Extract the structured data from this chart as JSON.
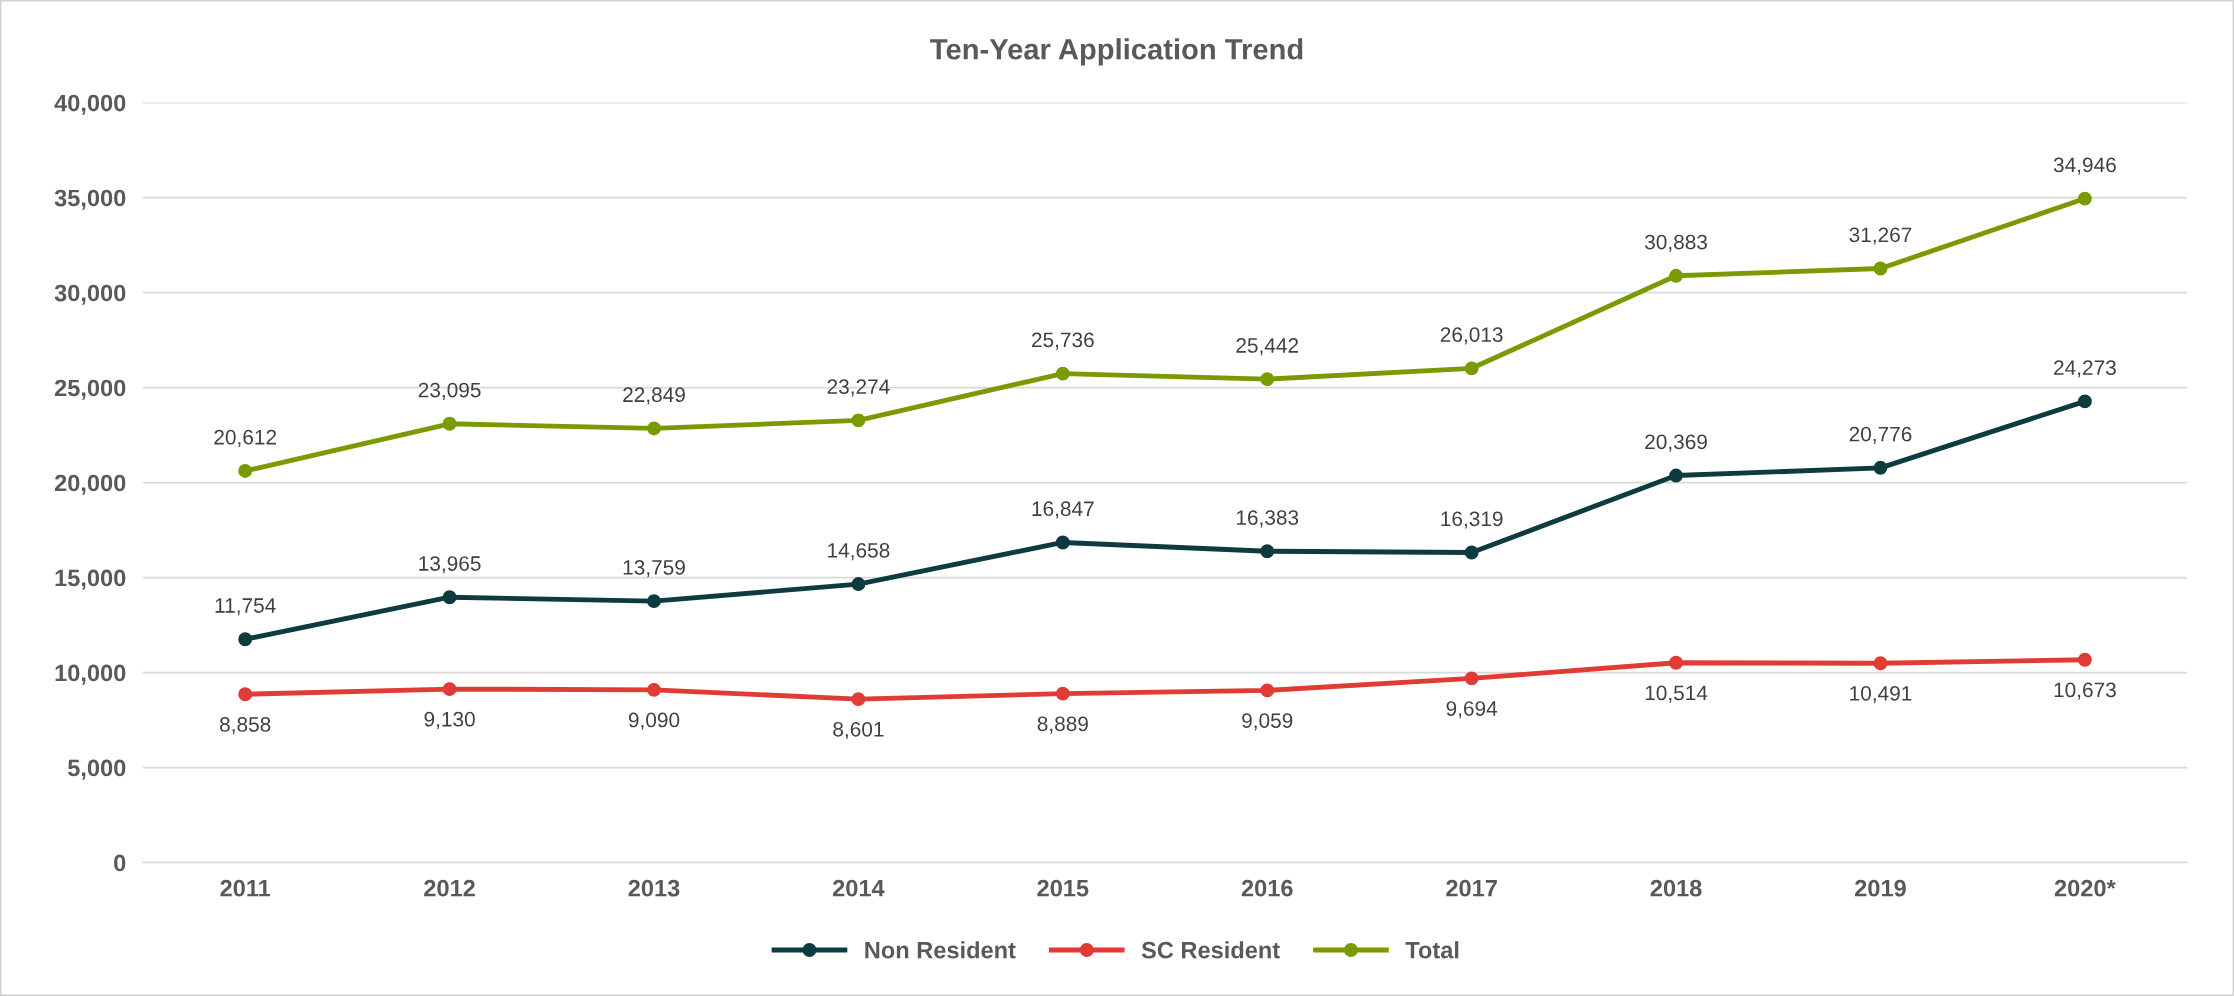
{
  "chart_data": {
    "type": "line",
    "title": "Ten-Year Application Trend",
    "categories": [
      "2011",
      "2012",
      "2013",
      "2014",
      "2015",
      "2016",
      "2017",
      "2018",
      "2019",
      "2020*"
    ],
    "series": [
      {
        "name": "Non Resident",
        "color": "#0e3b40",
        "values": [
          11754,
          13965,
          13759,
          14658,
          16847,
          16383,
          16319,
          20369,
          20776,
          24273
        ],
        "value_labels": [
          "11,754",
          "13,965",
          "13,759",
          "14,658",
          "16,847",
          "16,383",
          "16,319",
          "20,369",
          "20,776",
          "24,273"
        ]
      },
      {
        "name": "SC Resident",
        "color": "#e03b35",
        "values": [
          8858,
          9130,
          9090,
          8601,
          8889,
          9059,
          9694,
          10514,
          10491,
          10673
        ],
        "value_labels": [
          "8,858",
          "9,130",
          "9,090",
          "8,601",
          "8,889",
          "9,059",
          "9,694",
          "10,514",
          "10,491",
          "10,673"
        ]
      },
      {
        "name": "Total",
        "color": "#7a9a01",
        "values": [
          20612,
          23095,
          22849,
          23274,
          25736,
          25442,
          26013,
          30883,
          31267,
          34946
        ],
        "value_labels": [
          "20,612",
          "23,095",
          "22,849",
          "23,274",
          "25,736",
          "25,442",
          "26,013",
          "30,883",
          "31,267",
          "34,946"
        ]
      }
    ],
    "ylim": [
      0,
      40000
    ],
    "yticks": [
      {
        "value": 0,
        "label": "0"
      },
      {
        "value": 5000,
        "label": "5,000"
      },
      {
        "value": 10000,
        "label": "10,000"
      },
      {
        "value": 15000,
        "label": "15,000"
      },
      {
        "value": 20000,
        "label": "20,000"
      },
      {
        "value": 25000,
        "label": "25,000"
      },
      {
        "value": 30000,
        "label": "30,000"
      },
      {
        "value": 35000,
        "label": "35,000"
      },
      {
        "value": 40000,
        "label": "40,000"
      }
    ],
    "grid": "y",
    "legend": "bottom",
    "marker": "circle",
    "line_style": "solid"
  }
}
